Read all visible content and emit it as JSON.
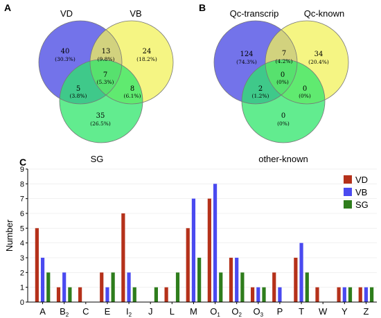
{
  "chart_data": [
    {
      "type": "venn",
      "panel": "A",
      "sets": [
        {
          "name": "VD",
          "color": "#5a5be6"
        },
        {
          "name": "VB",
          "color": "#f2f25a"
        },
        {
          "name": "SG",
          "color": "#2ee66a"
        }
      ],
      "regions": [
        {
          "sets": [
            "VD"
          ],
          "count": "40",
          "pct": "(30.3%)"
        },
        {
          "sets": [
            "VD",
            "VB"
          ],
          "count": "13",
          "pct": "(9.8%)"
        },
        {
          "sets": [
            "VB"
          ],
          "count": "24",
          "pct": "(18.2%)"
        },
        {
          "sets": [
            "VD",
            "VB",
            "SG"
          ],
          "count": "7",
          "pct": "(5.3%)"
        },
        {
          "sets": [
            "VD",
            "SG"
          ],
          "count": "5",
          "pct": "(3.8%)"
        },
        {
          "sets": [
            "VB",
            "SG"
          ],
          "count": "8",
          "pct": "(6.1%)"
        },
        {
          "sets": [
            "SG"
          ],
          "count": "35",
          "pct": "(26.5%)"
        }
      ]
    },
    {
      "type": "venn",
      "panel": "B",
      "sets": [
        {
          "name": "Qc-transcrip",
          "color": "#5a5be6"
        },
        {
          "name": "Qc-known",
          "color": "#f2f25a"
        },
        {
          "name": "other-known",
          "color": "#2ee66a"
        }
      ],
      "regions": [
        {
          "sets": [
            "Qc-transcrip"
          ],
          "count": "124",
          "pct": "(74.3%)"
        },
        {
          "sets": [
            "Qc-transcrip",
            "Qc-known"
          ],
          "count": "7",
          "pct": "(4.2%)"
        },
        {
          "sets": [
            "Qc-known"
          ],
          "count": "34",
          "pct": "(20.4%)"
        },
        {
          "sets": [
            "Qc-transcrip",
            "Qc-known",
            "other-known"
          ],
          "count": "0",
          "pct": "(0%)"
        },
        {
          "sets": [
            "Qc-transcrip",
            "other-known"
          ],
          "count": "2",
          "pct": "(1.2%)"
        },
        {
          "sets": [
            "Qc-known",
            "other-known"
          ],
          "count": "0",
          "pct": "(0%)"
        },
        {
          "sets": [
            "other-known"
          ],
          "count": "0",
          "pct": "(0%)"
        }
      ]
    },
    {
      "type": "bar",
      "panel": "C",
      "ylabel": "Number",
      "ylim": [
        0,
        9
      ],
      "yticks": [
        "0",
        "1",
        "2",
        "3",
        "4",
        "5",
        "6",
        "7",
        "8",
        "9"
      ],
      "categories": [
        {
          "base": "A",
          "sub": ""
        },
        {
          "base": "B",
          "sub": "2"
        },
        {
          "base": "C",
          "sub": ""
        },
        {
          "base": "E",
          "sub": ""
        },
        {
          "base": "I",
          "sub": "2"
        },
        {
          "base": "J",
          "sub": ""
        },
        {
          "base": "L",
          "sub": ""
        },
        {
          "base": "M",
          "sub": ""
        },
        {
          "base": "O",
          "sub": "1"
        },
        {
          "base": "O",
          "sub": "2"
        },
        {
          "base": "O",
          "sub": "3"
        },
        {
          "base": "P",
          "sub": ""
        },
        {
          "base": "T",
          "sub": ""
        },
        {
          "base": "W",
          "sub": ""
        },
        {
          "base": "Y",
          "sub": ""
        },
        {
          "base": "Z",
          "sub": ""
        }
      ],
      "series": [
        {
          "name": "VD",
          "color": "#b5311a",
          "values": [
            5,
            1,
            1,
            2,
            6,
            0,
            1,
            5,
            7,
            3,
            1,
            2,
            3,
            1,
            1,
            1
          ]
        },
        {
          "name": "VB",
          "color": "#4a4af0",
          "values": [
            3,
            2,
            0,
            1,
            2,
            0,
            0,
            7,
            8,
            3,
            1,
            1,
            4,
            0,
            1,
            1
          ]
        },
        {
          "name": "SG",
          "color": "#2e7d1c",
          "values": [
            2,
            1,
            0,
            2,
            1,
            1,
            2,
            3,
            2,
            2,
            1,
            0,
            2,
            0,
            1,
            1
          ]
        }
      ],
      "legend": "top-right"
    }
  ]
}
